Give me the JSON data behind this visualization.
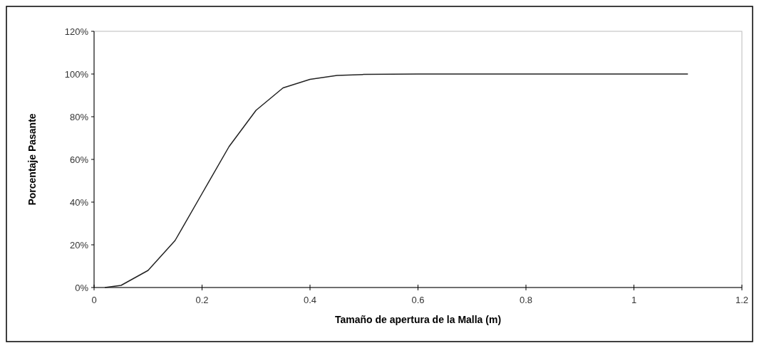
{
  "chart_data": {
    "type": "line",
    "xlabel": "Tamaño de apertura de la Malla (m)",
    "ylabel": "Porcentaje Pasante",
    "x": [
      0.02,
      0.05,
      0.1,
      0.15,
      0.2,
      0.25,
      0.3,
      0.35,
      0.4,
      0.45,
      0.5,
      0.6,
      0.8,
      1.1
    ],
    "series": [
      {
        "color": "#222222",
        "values": [
          0,
          1,
          8,
          22,
          44,
          66,
          83,
          93.5,
          97.5,
          99.3,
          99.8,
          100,
          100,
          100
        ]
      }
    ],
    "xlim": [
      0,
      1.2
    ],
    "xticks": [
      0,
      0.2,
      0.4,
      0.6,
      0.8,
      1,
      1.2
    ],
    "ylim": [
      0,
      120
    ],
    "yticks": [
      {
        "value": 0,
        "label": "0%"
      },
      {
        "value": 20,
        "label": "20%"
      },
      {
        "value": 40,
        "label": "40%"
      },
      {
        "value": 60,
        "label": "60%"
      },
      {
        "value": 80,
        "label": "80%"
      },
      {
        "value": 100,
        "label": "100%"
      },
      {
        "value": 120,
        "label": "120%"
      }
    ],
    "grid": false,
    "marker": "none",
    "line_style": "solid"
  }
}
